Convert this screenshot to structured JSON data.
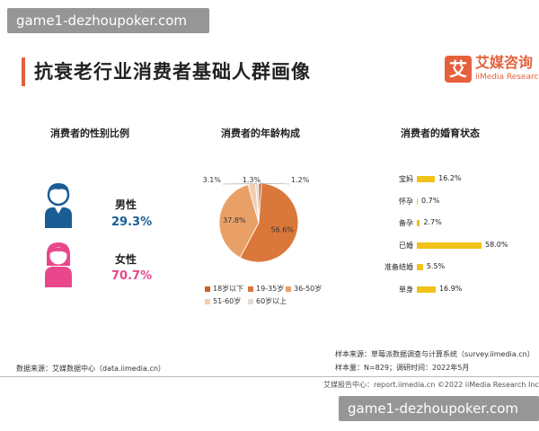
{
  "watermark": {
    "top": "game1-dezhoupoker.com",
    "bottom": "game1-dezhoupoker.com"
  },
  "title": "抗衰老行业消费者基础人群画像",
  "logo": {
    "mark": "艾",
    "cn": "艾媒咨询",
    "en": "iiMedia Research"
  },
  "colors": {
    "accent": "#e5603c",
    "male": "#1a5d94",
    "female": "#e8488b",
    "bar": "#f0c21a"
  },
  "chart_data": [
    {
      "type": "pictogram",
      "title": "消费者的性别比例",
      "categories": [
        "男性",
        "女性"
      ],
      "values": [
        29.3,
        70.7
      ],
      "labels": [
        "29.3%",
        "70.7%"
      ],
      "icons": [
        "male-person-icon",
        "female-person-icon"
      ]
    },
    {
      "type": "pie",
      "title": "消费者的年龄构成",
      "categories": [
        "18岁以下",
        "19-35岁",
        "36-50岁",
        "51-60岁",
        "60岁以上"
      ],
      "values": [
        1.2,
        56.6,
        37.8,
        3.1,
        1.3
      ],
      "labels": [
        "1.2%",
        "56.6%",
        "37.8%",
        "3.1%",
        "1.3%"
      ],
      "colors": [
        "#c8602c",
        "#d9783a",
        "#e9a067",
        "#f4cdb0",
        "#e3dbd4"
      ],
      "legend_position": "bottom"
    },
    {
      "type": "bar",
      "orientation": "horizontal",
      "title": "消费者的婚育状态",
      "categories": [
        "宝妈",
        "怀孕",
        "备孕",
        "已婚",
        "准备结婚",
        "单身"
      ],
      "values": [
        16.2,
        0.7,
        2.7,
        58.0,
        5.5,
        16.9
      ],
      "labels": [
        "16.2%",
        "0.7%",
        "2.7%",
        "58.0%",
        "5.5%",
        "16.9%"
      ],
      "xlim": [
        0,
        58.0
      ]
    }
  ],
  "footer": {
    "source_left": "数据来源：艾媒数据中心（data.iimedia.cn）",
    "sample_source": "样本来源：草莓派数据调查与计算系统（survey.iimedia.cn）",
    "sample_info": "样本量：N=829；调研时间：2022年5月",
    "report": "艾媒报告中心：report.iimedia.cn  ©2022  iiMedia Research Inc"
  }
}
